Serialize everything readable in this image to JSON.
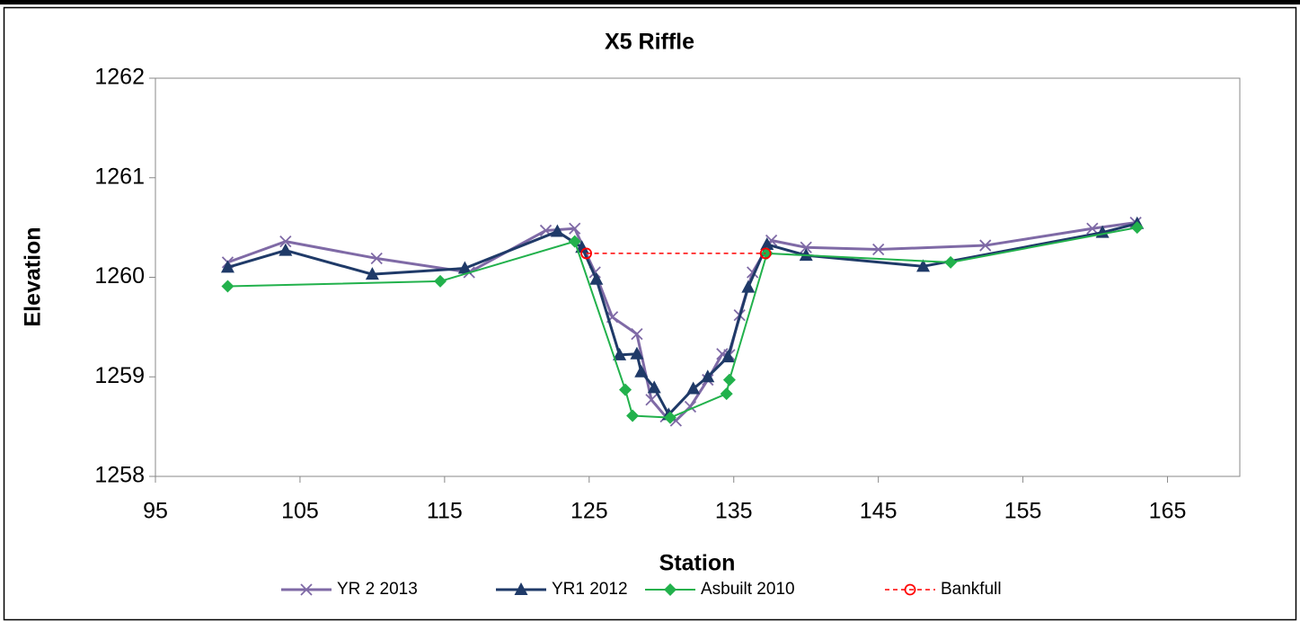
{
  "chart_data": {
    "type": "line",
    "title": "X5 Riffle",
    "x_label": "Station",
    "y_label": "Elevation",
    "xlim": [
      95,
      170
    ],
    "xticks": [
      95,
      105,
      115,
      125,
      135,
      145,
      155,
      165
    ],
    "ylim": [
      1258,
      1262
    ],
    "yticks": [
      1258,
      1259,
      1260,
      1261,
      1262
    ],
    "legend": "bottom",
    "series": [
      {
        "name": "YR 2 2013",
        "color": "#7f6aa6",
        "marker": "x",
        "style": "solid",
        "width": 3,
        "x": [
          100,
          104,
          110.3,
          116.7,
          122,
          124,
          125.4,
          126.6,
          128.3,
          129.3,
          130.3,
          131,
          132,
          133.2,
          134.2,
          134.7,
          135.4,
          136.3,
          137.6,
          140,
          145,
          152.4,
          159.8,
          162.8
        ],
        "values": [
          1260.15,
          1260.36,
          1260.19,
          1260.05,
          1260.47,
          1260.49,
          1260.05,
          1259.6,
          1259.43,
          1258.77,
          1258.6,
          1258.56,
          1258.7,
          1258.97,
          1259.23,
          1259.22,
          1259.62,
          1260.05,
          1260.37,
          1260.3,
          1260.28,
          1260.32,
          1260.49,
          1260.55
        ]
      },
      {
        "name": "YR1 2012",
        "color": "#1f3a68",
        "marker": "triangle",
        "style": "solid",
        "width": 3,
        "x": [
          100,
          104,
          110,
          116.4,
          122.8,
          124.5,
          125.5,
          127.1,
          128.3,
          128.6,
          129.5,
          130.5,
          132.2,
          133.2,
          134.6,
          136,
          137.3,
          140,
          148.1,
          160.5,
          162.9
        ],
        "values": [
          1260.1,
          1260.27,
          1260.03,
          1260.09,
          1260.46,
          1260.3,
          1259.98,
          1259.22,
          1259.23,
          1259.05,
          1258.89,
          1258.62,
          1258.88,
          1259,
          1259.2,
          1259.9,
          1260.33,
          1260.22,
          1260.11,
          1260.45,
          1260.54
        ]
      },
      {
        "name": "Asbuilt 2010",
        "color": "#22b14c",
        "marker": "diamond",
        "style": "solid",
        "width": 2,
        "x": [
          100,
          114.7,
          124,
          127.5,
          128,
          130.6,
          134.5,
          134.7,
          137.3,
          150,
          162.9
        ],
        "values": [
          1259.91,
          1259.96,
          1260.36,
          1258.87,
          1258.61,
          1258.59,
          1258.83,
          1258.97,
          1260.24,
          1260.15,
          1260.5
        ]
      },
      {
        "name": "Bankfull",
        "color": "#ff0000",
        "marker": "circle",
        "style": "dashed",
        "width": 1.5,
        "x": [
          124.8,
          137.2
        ],
        "values": [
          1260.24,
          1260.24
        ]
      }
    ]
  }
}
